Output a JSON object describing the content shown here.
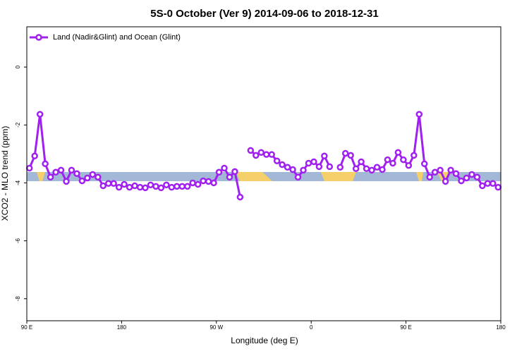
{
  "chart_data": {
    "type": "line",
    "title": "5S-0 October (Ver 9)   2014-09-06 to 2018-12-31",
    "xlabel": "Longitude (deg E)",
    "ylabel": "XCO2 - MLO trend (ppm)",
    "xlim": [
      90,
      540
    ],
    "ylim": [
      -8.76,
      1.39
    ],
    "xticks": [
      {
        "value": 90,
        "label": "90 E"
      },
      180,
      {
        "value": 270,
        "label": "90 W"
      },
      {
        "value": 360,
        "label": "0"
      },
      {
        "value": 450,
        "label": "90 E"
      },
      {
        "value": 540,
        "label": "180"
      }
    ],
    "yticks": [
      -8,
      -6,
      -4,
      -2,
      0
    ],
    "legend": "top-left",
    "x": [
      92.5,
      97.5,
      102.5,
      107.5,
      112.5,
      117.5,
      122.5,
      127.5,
      132.5,
      137.5,
      142.5,
      147.5,
      152.5,
      157.5,
      162.5,
      167.5,
      172.5,
      177.5,
      182.5,
      187.5,
      192.5,
      197.5,
      202.5,
      207.5,
      212.5,
      217.5,
      222.5,
      227.5,
      232.5,
      237.5,
      242.5,
      247.5,
      252.5,
      257.5,
      262.5,
      267.5,
      272.5,
      277.5,
      282.5,
      287.5,
      292.5,
      297.5,
      302.5,
      307.5,
      312.5,
      317.5,
      322.5,
      327.5,
      332.5,
      337.5,
      342.5,
      347.5,
      352.5,
      357.5,
      362.5,
      367.5,
      372.5,
      377.5,
      382.5,
      387.5,
      392.5,
      397.5,
      402.5,
      407.5,
      412.5,
      417.5,
      422.5,
      427.5,
      432.5,
      437.5,
      442.5,
      447.5,
      452.5,
      457.5,
      462.5,
      467.5,
      472.5,
      477.5,
      482.5,
      487.5,
      492.5,
      497.5,
      502.5,
      507.5,
      512.5,
      517.5,
      522.5,
      527.5,
      532.5,
      537.5
    ],
    "series": [
      {
        "name": "Land (Nadir&Glint) and Ocean (Glint)",
        "color": "#a020f0",
        "values": [
          -3.49,
          -3.07,
          -1.63,
          -3.34,
          -3.8,
          -3.63,
          -3.56,
          -3.95,
          -3.56,
          -3.68,
          -3.93,
          -3.83,
          -3.71,
          -3.8,
          -4.1,
          -4.02,
          -4.02,
          -4.15,
          -4.05,
          -4.15,
          -4.1,
          -4.15,
          -4.17,
          -4.07,
          -4.12,
          -4.17,
          -4.07,
          -4.15,
          -4.12,
          -4.12,
          -4.12,
          -4.0,
          -4.05,
          -3.93,
          -3.95,
          -4.0,
          -3.63,
          -3.49,
          -3.8,
          -3.61,
          -4.49,
          null,
          -2.88,
          -3.05,
          -2.95,
          -3.02,
          -3.02,
          -3.24,
          -3.37,
          -3.46,
          -3.54,
          -3.8,
          -3.56,
          -3.32,
          -3.27,
          -3.44,
          -3.07,
          -3.44,
          null,
          -3.46,
          -2.98,
          -3.05,
          -3.51,
          -3.27,
          -3.51,
          -3.56,
          -3.46,
          -3.54,
          -3.2,
          -3.32,
          -2.95,
          -3.2,
          -3.4,
          -3.05,
          -1.63,
          -3.34,
          -3.8,
          -3.63,
          -3.56,
          -3.95,
          -3.56,
          -3.68,
          -3.93,
          -3.83,
          -3.71,
          -3.8,
          -4.1,
          -4.02,
          -4.02,
          -4.15
        ]
      }
    ]
  }
}
